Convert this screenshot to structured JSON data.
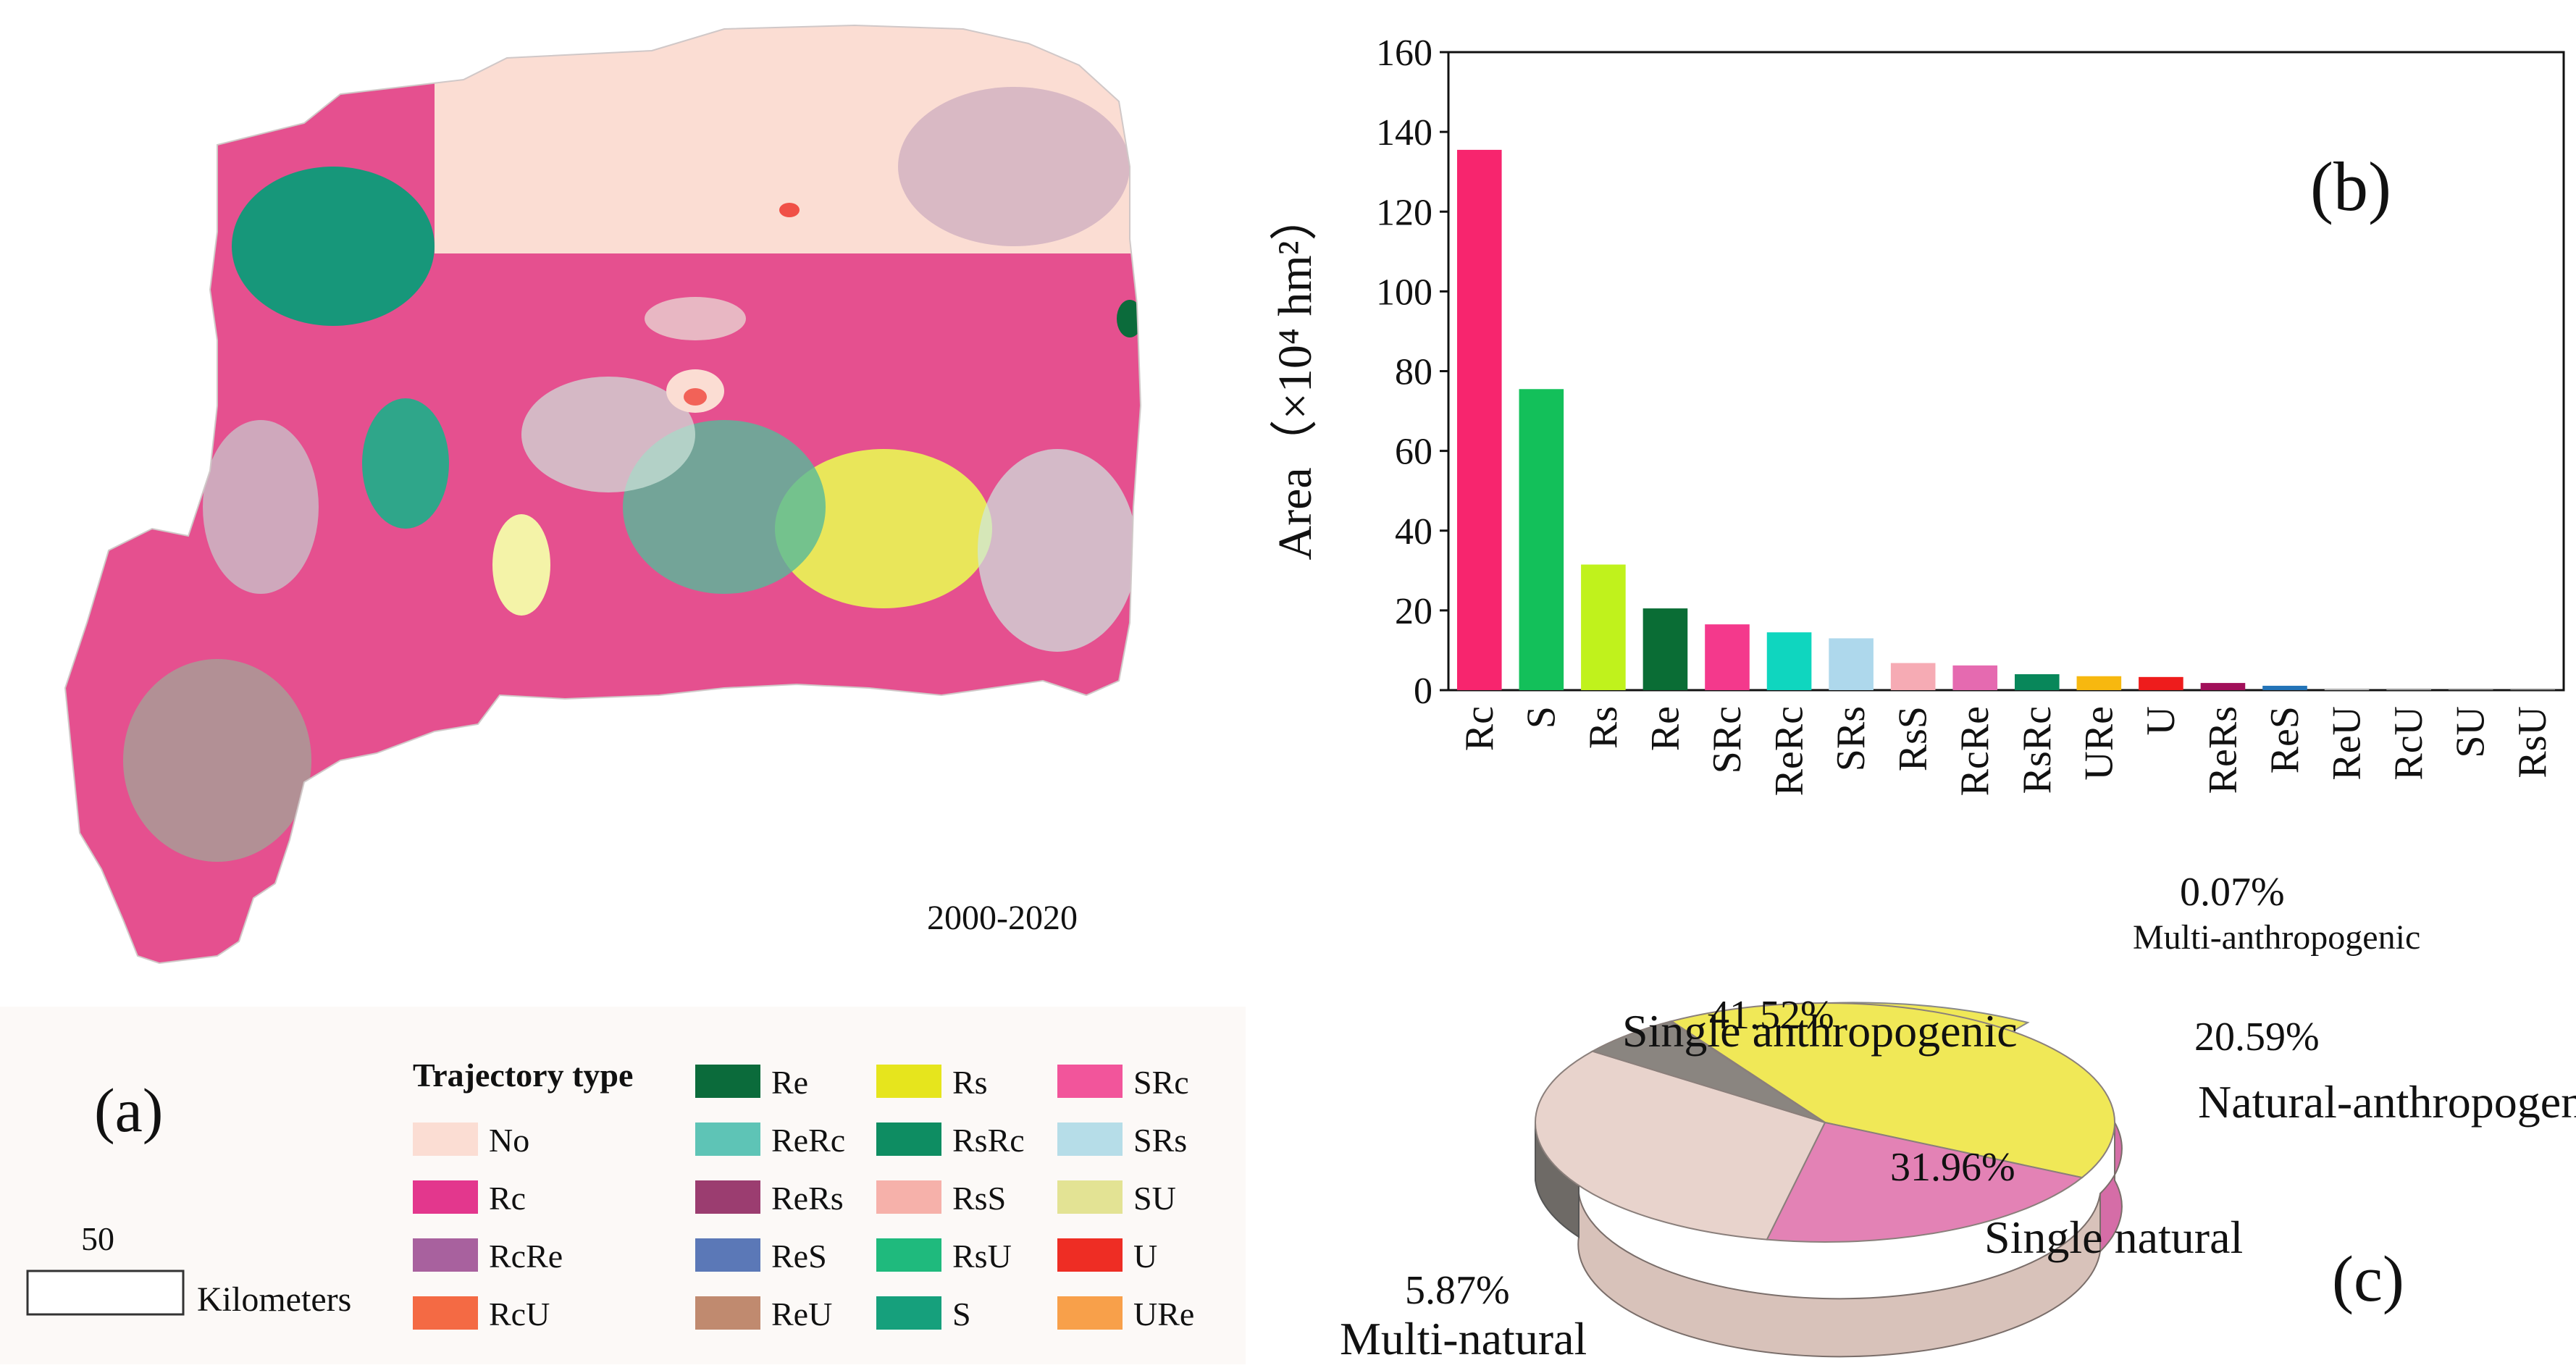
{
  "panel_a": {
    "label": "(a)",
    "period": "2000-2020",
    "scale_value": "50",
    "scale_unit": "Kilometers",
    "legend_title": "Trajectory type",
    "legend": [
      {
        "code": "No",
        "color": "#fbddd3"
      },
      {
        "code": "Rc",
        "color": "#e3378d"
      },
      {
        "code": "RcRe",
        "color": "#a8619e"
      },
      {
        "code": "RcU",
        "color": "#f46a44"
      },
      {
        "code": "Re",
        "color": "#0b6b3b"
      },
      {
        "code": "ReRc",
        "color": "#5ec4b6"
      },
      {
        "code": "ReRs",
        "color": "#9b3d70"
      },
      {
        "code": "ReS",
        "color": "#5b78b7"
      },
      {
        "code": "ReU",
        "color": "#c08a6f"
      },
      {
        "code": "Rs",
        "color": "#e6e51d"
      },
      {
        "code": "RsRc",
        "color": "#0e8d62"
      },
      {
        "code": "RsS",
        "color": "#f6b1aa"
      },
      {
        "code": "RsU",
        "color": "#1fba7d"
      },
      {
        "code": "S",
        "color": "#16a07c"
      },
      {
        "code": "SRc",
        "color": "#f2559b"
      },
      {
        "code": "SRs",
        "color": "#b6dde8"
      },
      {
        "code": "SU",
        "color": "#e3e394"
      },
      {
        "code": "U",
        "color": "#ee2d24"
      },
      {
        "code": "URe",
        "color": "#f8a04a"
      }
    ]
  },
  "chart_data": [
    {
      "type": "bar",
      "panel_label": "(b)",
      "ylabel": "Area（×10⁴ hm²）",
      "ylim": [
        0,
        160
      ],
      "yticks": [
        0,
        20,
        40,
        60,
        80,
        100,
        120,
        140,
        160
      ],
      "categories": [
        "Rc",
        "S",
        "Rs",
        "Re",
        "SRc",
        "ReRc",
        "SRs",
        "RsS",
        "RcRe",
        "RsRc",
        "URe",
        "U",
        "ReRs",
        "ReS",
        "ReU",
        "RcU",
        "SU",
        "RsU"
      ],
      "values": [
        135.5,
        75.5,
        31.5,
        20.5,
        16.5,
        14.5,
        13.0,
        6.8,
        6.2,
        4.0,
        3.5,
        3.3,
        1.8,
        1.1,
        0.2,
        0.15,
        0.1,
        0.1
      ],
      "colors": [
        "#f7256e",
        "#13c05a",
        "#c0f21c",
        "#0a6d35",
        "#f4398c",
        "#0fd6bf",
        "#aed8ec",
        "#f6abb4",
        "#e56ab0",
        "#08875a",
        "#f7b80f",
        "#ee1c1c",
        "#a1105a",
        "#2374b8",
        "#cccccc",
        "#cccccc",
        "#cccccc",
        "#cccccc"
      ]
    },
    {
      "type": "pie",
      "panel_label": "(c)",
      "slices": [
        {
          "name": "Single anthropogenic",
          "value": 41.52,
          "label": "41.52%",
          "color": "#f0e857"
        },
        {
          "name": "Natural-anthropogenic",
          "value": 20.59,
          "label": "20.59%",
          "color": "#e382b5"
        },
        {
          "name": "Single natural",
          "value": 31.96,
          "label": "31.96%",
          "color": "#e8d3cc"
        },
        {
          "name": "Multi-natural",
          "value": 5.87,
          "label": "5.87%",
          "color": "#8a8580"
        },
        {
          "name": "Multi-anthropogenic",
          "value": 0.07,
          "label": "0.07%",
          "color": "#3a3a3a"
        }
      ]
    }
  ]
}
